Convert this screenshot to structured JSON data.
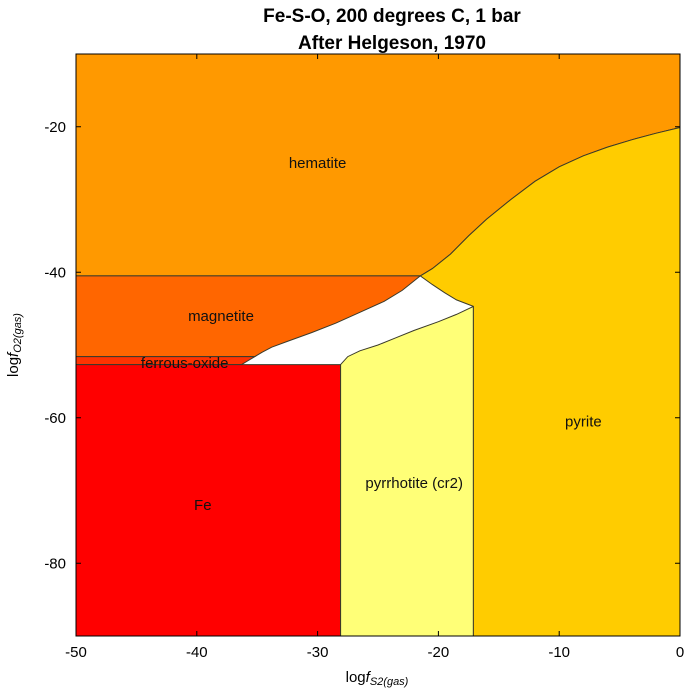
{
  "chart_data": {
    "type": "area",
    "title": "Fe-S-O, 200 degrees C, 1 bar",
    "subtitle": "After Helgeson, 1970",
    "xlabel": {
      "prefix": "log",
      "var": "f",
      "sub": "S2(gas)"
    },
    "ylabel": {
      "prefix": "log",
      "var": "f",
      "sub": "O2(gas)"
    },
    "xlim": [
      -50,
      0
    ],
    "ylim": [
      -90,
      -10
    ],
    "x_ticks": [
      -50,
      -40,
      -30,
      -20,
      -10,
      0
    ],
    "y_ticks": [
      -20,
      -40,
      -60,
      -80
    ],
    "x_tick_labels": [
      "-50",
      "-40",
      "-30",
      "-20",
      "-10",
      "0"
    ],
    "y_tick_labels": [
      "-20",
      "-40",
      "-60",
      "-80"
    ],
    "fields": [
      {
        "name": "hematite",
        "color": "#FF9900",
        "label_at": [
          -30,
          -25
        ],
        "polygon": [
          [
            -50,
            -10
          ],
          [
            0,
            -10
          ],
          [
            0,
            -20.1
          ],
          [
            -2,
            -20.9
          ],
          [
            -4,
            -21.8
          ],
          [
            -6,
            -22.8
          ],
          [
            -8,
            -24.0
          ],
          [
            -10,
            -25.5
          ],
          [
            -12,
            -27.5
          ],
          [
            -14,
            -30.0
          ],
          [
            -16,
            -32.7
          ],
          [
            -17.5,
            -35.0
          ],
          [
            -19.0,
            -37.5
          ],
          [
            -20.5,
            -39.5
          ],
          [
            -21.5,
            -40.5
          ],
          [
            -50,
            -40.5
          ]
        ]
      },
      {
        "name": "magnetite",
        "color": "#FF6600",
        "label_at": [
          -38,
          -46
        ],
        "polygon": [
          [
            -50,
            -40.5
          ],
          [
            -21.5,
            -40.5
          ],
          [
            -23.0,
            -42.5
          ],
          [
            -24.5,
            -44.0
          ],
          [
            -26.5,
            -45.5
          ],
          [
            -28.5,
            -47.0
          ],
          [
            -30.5,
            -48.3
          ],
          [
            -32.5,
            -49.5
          ],
          [
            -33.8,
            -50.3
          ],
          [
            -34.6,
            -51.0
          ],
          [
            -35.2,
            -51.6
          ],
          [
            -50,
            -51.6
          ]
        ]
      },
      {
        "name": "ferrous-oxide",
        "color": "#FF3300",
        "label_at": [
          -41,
          -52.5
        ],
        "polygon": [
          [
            -50,
            -51.6
          ],
          [
            -35.2,
            -51.6
          ],
          [
            -35.8,
            -52.2
          ],
          [
            -36.3,
            -52.7
          ],
          [
            -50,
            -52.7
          ]
        ]
      },
      {
        "name": "Fe",
        "color": "#FF0000",
        "label_at": [
          -39.5,
          -72
        ],
        "polygon": [
          [
            -50,
            -52.7
          ],
          [
            -28.1,
            -52.7
          ],
          [
            -28.1,
            -90
          ],
          [
            -50,
            -90
          ]
        ]
      },
      {
        "name": "pyrrhotite (cr2)",
        "color": "#FFFF77",
        "label_at": [
          -22,
          -69
        ],
        "polygon": [
          [
            -28.1,
            -52.7
          ],
          [
            -27.5,
            -51.6
          ],
          [
            -26.5,
            -50.8
          ],
          [
            -25.0,
            -50.0
          ],
          [
            -23.5,
            -49.0
          ],
          [
            -22.0,
            -48.0
          ],
          [
            -20.0,
            -46.8
          ],
          [
            -18.5,
            -45.8
          ],
          [
            -17.1,
            -44.7
          ],
          [
            -17.1,
            -90
          ],
          [
            -28.1,
            -90
          ]
        ]
      },
      {
        "name": "pyrite",
        "color": "#FFCC00",
        "label_at": [
          -8,
          -60.5
        ],
        "polygon": [
          [
            -17.1,
            -44.7
          ],
          [
            -18.5,
            -43.8
          ],
          [
            -19.5,
            -42.8
          ],
          [
            -20.5,
            -41.7
          ],
          [
            -21.5,
            -40.5
          ],
          [
            -20.5,
            -39.5
          ],
          [
            -19.0,
            -37.5
          ],
          [
            -17.5,
            -35.0
          ],
          [
            -16,
            -32.7
          ],
          [
            -14,
            -30.0
          ],
          [
            -12,
            -27.5
          ],
          [
            -10,
            -25.5
          ],
          [
            -8,
            -24.0
          ],
          [
            -6,
            -22.8
          ],
          [
            -4,
            -21.8
          ],
          [
            -2,
            -20.9
          ],
          [
            0,
            -20.1
          ],
          [
            0,
            -90
          ],
          [
            -17.1,
            -90
          ]
        ]
      }
    ]
  }
}
